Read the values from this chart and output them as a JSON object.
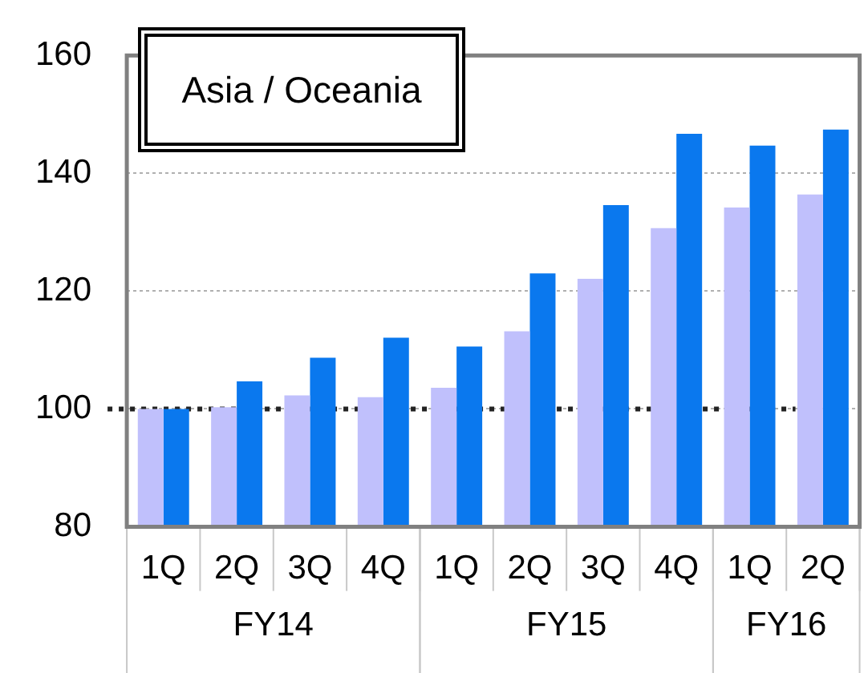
{
  "chart_data": {
    "type": "bar",
    "title": "Asia / Oceania",
    "categories": [
      "1Q",
      "2Q",
      "3Q",
      "4Q",
      "1Q",
      "2Q",
      "3Q",
      "4Q",
      "1Q",
      "2Q"
    ],
    "series": [
      {
        "color": "#c0c0fc",
        "values": [
          100,
          100.3,
          102.3,
          102,
          103.6,
          113.2,
          122.1,
          130.7,
          134.2,
          136.4
        ]
      },
      {
        "color": "#0a78ee",
        "values": [
          100,
          104.7,
          108.7,
          112.1,
          110.6,
          123,
          134.6,
          146.7,
          144.7,
          147.4
        ]
      }
    ],
    "ylim": [
      80,
      160
    ],
    "yticks": [
      80,
      100,
      120,
      140,
      160
    ],
    "grid": "y",
    "legend": false,
    "ref_lines": [
      {
        "axis": "y",
        "value": 100,
        "color": "#222222",
        "line_style": "dotted"
      }
    ],
    "annotations": [
      "FY14",
      "FY15",
      "FY16"
    ]
  }
}
